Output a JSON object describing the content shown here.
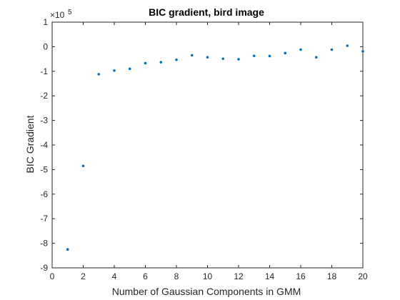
{
  "chart_data": {
    "type": "scatter",
    "title": "BIC gradient, bird image",
    "xlabel": "Number of Gaussian Components in GMM",
    "ylabel": "BIC Gradient",
    "y_multiplier": "×10",
    "y_multiplier_exponent": "5",
    "xlim": [
      0,
      20
    ],
    "ylim": [
      -9,
      1
    ],
    "xticks": [
      0,
      2,
      4,
      6,
      8,
      10,
      12,
      14,
      16,
      18,
      20
    ],
    "yticks": [
      -9,
      -8,
      -7,
      -6,
      -5,
      -4,
      -3,
      -2,
      -1,
      0,
      1
    ],
    "grid": false,
    "marker_color": "#0072BD",
    "series": [
      {
        "x": [
          1,
          2,
          3,
          4,
          5,
          6,
          7,
          8,
          9,
          10,
          11,
          12,
          13,
          14,
          15,
          16,
          17,
          18,
          19,
          20
        ],
        "values": [
          -8.25,
          -4.85,
          -1.12,
          -0.97,
          -0.9,
          -0.67,
          -0.63,
          -0.53,
          -0.35,
          -0.43,
          -0.49,
          -0.51,
          -0.37,
          -0.38,
          -0.26,
          -0.12,
          -0.43,
          -0.12,
          0.04,
          -0.19
        ]
      }
    ]
  }
}
